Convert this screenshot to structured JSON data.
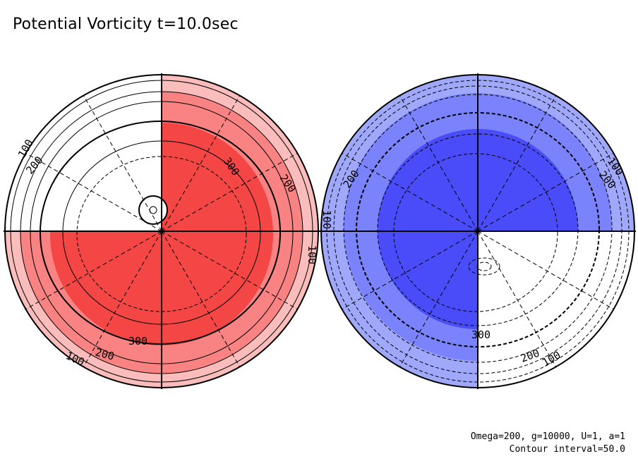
{
  "title": "Potential Vorticity t=10.0sec",
  "footer": {
    "params": "Omega=200, g=10000, U=1, a=1",
    "contour": "Contour interval=50.0"
  },
  "colors": {
    "red_light": "#fbbcbc",
    "red_mid": "#f98282",
    "red_dark": "#f54646",
    "blue_light": "#a0a8fb",
    "blue_mid": "#7a83fb",
    "blue_dark": "#4a4cfa"
  },
  "left_hemisphere": {
    "labels": {
      "l100a": "100",
      "l200a": "200",
      "l300a": "300",
      "l200b": "200",
      "l100b": "100",
      "l300b": "300",
      "l200c": "200",
      "l100c": "100"
    }
  },
  "right_hemisphere": {
    "labels": {
      "l200a": "200",
      "l100a": "100",
      "l100b": "100",
      "l200b": "200",
      "l300a": "300",
      "l200c": "200",
      "l100c": "100"
    }
  }
}
